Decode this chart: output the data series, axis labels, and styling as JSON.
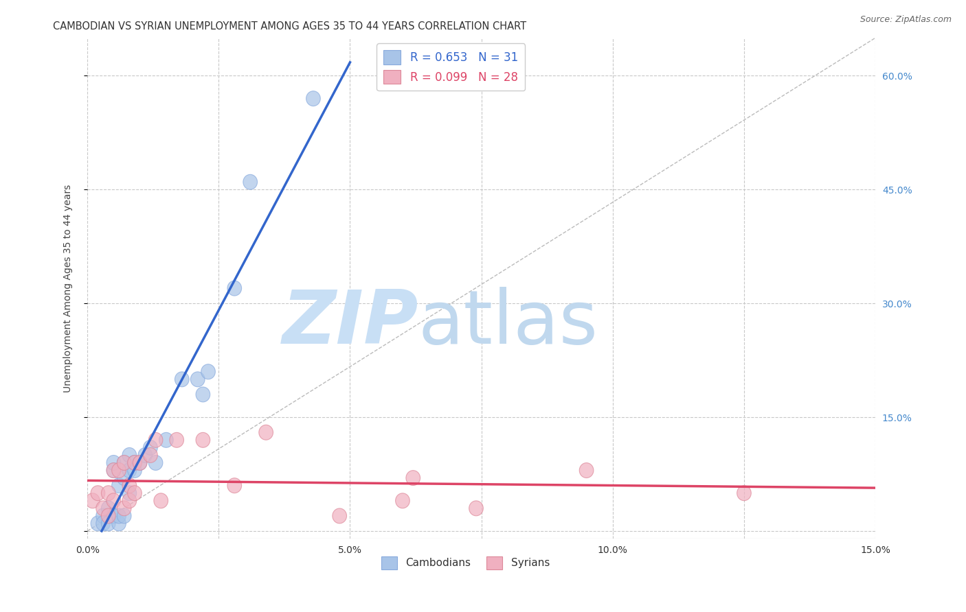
{
  "title": "CAMBODIAN VS SYRIAN UNEMPLOYMENT AMONG AGES 35 TO 44 YEARS CORRELATION CHART",
  "source": "Source: ZipAtlas.com",
  "ylabel": "Unemployment Among Ages 35 to 44 years",
  "xlim": [
    0.0,
    0.15
  ],
  "ylim": [
    -0.01,
    0.65
  ],
  "xticks": [
    0.0,
    0.025,
    0.05,
    0.075,
    0.1,
    0.125,
    0.15
  ],
  "xticklabels": [
    "0.0%",
    "",
    "5.0%",
    "",
    "10.0%",
    "",
    "15.0%"
  ],
  "yticks": [
    0.0,
    0.15,
    0.3,
    0.45,
    0.6
  ],
  "yticklabels": [
    "",
    "15.0%",
    "30.0%",
    "45.0%",
    "60.0%"
  ],
  "cambodian_R": 0.653,
  "cambodian_N": 31,
  "syrian_R": 0.099,
  "syrian_N": 28,
  "background_color": "#ffffff",
  "grid_color": "#c8c8c8",
  "cambodian_color": "#a8c4e8",
  "cambodian_edge_color": "#88aadd",
  "cambodian_line_color": "#3366cc",
  "syrian_color": "#f0b0c0",
  "syrian_edge_color": "#dd8899",
  "syrian_line_color": "#dd4466",
  "diagonal_color": "#bbbbbb",
  "watermark_zip_color": "#c8dff5",
  "watermark_atlas_color": "#c0d8ee",
  "tick_color": "#4488cc",
  "cambodian_x": [
    0.002,
    0.003,
    0.003,
    0.004,
    0.004,
    0.005,
    0.005,
    0.005,
    0.006,
    0.006,
    0.006,
    0.007,
    0.007,
    0.007,
    0.008,
    0.008,
    0.008,
    0.009,
    0.009,
    0.01,
    0.011,
    0.012,
    0.013,
    0.015,
    0.018,
    0.021,
    0.022,
    0.023,
    0.028,
    0.031,
    0.043
  ],
  "cambodian_y": [
    0.01,
    0.02,
    0.01,
    0.03,
    0.01,
    0.08,
    0.09,
    0.02,
    0.06,
    0.01,
    0.02,
    0.07,
    0.09,
    0.02,
    0.05,
    0.1,
    0.08,
    0.09,
    0.08,
    0.09,
    0.1,
    0.11,
    0.09,
    0.12,
    0.2,
    0.2,
    0.18,
    0.21,
    0.32,
    0.46,
    0.57
  ],
  "syrian_x": [
    0.001,
    0.002,
    0.003,
    0.004,
    0.004,
    0.005,
    0.005,
    0.006,
    0.007,
    0.007,
    0.008,
    0.008,
    0.009,
    0.009,
    0.01,
    0.012,
    0.013,
    0.014,
    0.017,
    0.022,
    0.028,
    0.034,
    0.048,
    0.06,
    0.062,
    0.074,
    0.095,
    0.125
  ],
  "syrian_y": [
    0.04,
    0.05,
    0.03,
    0.05,
    0.02,
    0.04,
    0.08,
    0.08,
    0.03,
    0.09,
    0.06,
    0.04,
    0.05,
    0.09,
    0.09,
    0.1,
    0.12,
    0.04,
    0.12,
    0.12,
    0.06,
    0.13,
    0.02,
    0.04,
    0.07,
    0.03,
    0.08,
    0.05
  ]
}
